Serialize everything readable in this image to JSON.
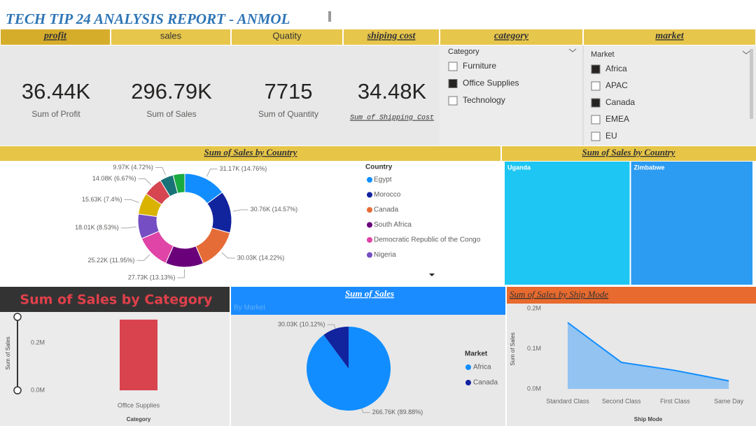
{
  "header": {
    "title": "TECH TIP 24 ANALYSIS REPORT - ANMOL"
  },
  "tabs": [
    "profit",
    "sales",
    "Quatity",
    "shiping cost",
    "category",
    "market"
  ],
  "cards": [
    {
      "value": "36.44K",
      "label": "Sum of Profit"
    },
    {
      "value": "296.79K",
      "label": "Sum of Sales"
    },
    {
      "value": "7715",
      "label": "Sum of Quantity"
    },
    {
      "value": "34.48K",
      "label": "Sum of Shipping Cost"
    }
  ],
  "slicers": [
    {
      "title": "Category",
      "items": [
        {
          "label": "Furniture",
          "checked": false
        },
        {
          "label": "Office Supplies",
          "checked": true
        },
        {
          "label": "Technology",
          "checked": false
        }
      ]
    },
    {
      "title": "Market",
      "items": [
        {
          "label": "Africa",
          "checked": true
        },
        {
          "label": "APAC",
          "checked": false
        },
        {
          "label": "Canada",
          "checked": true
        },
        {
          "label": "EMEA",
          "checked": false
        },
        {
          "label": "EU",
          "checked": false
        }
      ]
    }
  ],
  "chart_data": [
    {
      "type": "donut",
      "title": "Sum of Sales by Country",
      "legend_title": "Country",
      "categories": [
        "Egypt",
        "Morocco",
        "Canada",
        "South Africa",
        "Democratic Republic of the Congo",
        "Nigeria",
        null,
        null,
        null,
        null
      ],
      "values": [
        31170,
        30760,
        30030,
        27730,
        25220,
        18010,
        15630,
        14080,
        9970,
        8550
      ],
      "value_labels": [
        "31.17K (14.76%)",
        "30.76K (14.57%)",
        "30.03K (14.22%)",
        "27.73K (13.13%)",
        "25.22K (11.95%)",
        "18.01K (8.53%)",
        "15.63K (7.4%)",
        "14.08K (6.67%)",
        "9.97K (4.72%)",
        null
      ],
      "colors": [
        "#118DFF",
        "#12239E",
        "#E66C37",
        "#6B007B",
        "#E044A7",
        "#744EC2",
        "#D9B300",
        "#D64550",
        "#197278",
        "#1AAB40"
      ]
    },
    {
      "type": "treemap",
      "title": "Sum of Sales by Country",
      "categories": [
        "Uganda",
        "Zimbabwe"
      ],
      "values": [
        179,
        174
      ],
      "colors": [
        "#1EC6F3",
        "#2C9BF2"
      ]
    },
    {
      "type": "bar",
      "title": "Sum of Sales by Category",
      "categories": [
        "Office Supplies"
      ],
      "values": [
        296790
      ],
      "color": "#D9434E",
      "x_label": "Category",
      "y_label": "Sum of Sales",
      "ylim": [
        0,
        320000
      ],
      "yticks": [
        {
          "value": 0,
          "label": "0.0M"
        },
        {
          "value": 200000,
          "label": "0.2M"
        }
      ]
    },
    {
      "type": "pie",
      "title": "Sum of Sales",
      "subtitle": "By Market",
      "legend_title": "Market",
      "categories": [
        "Africa",
        "Canada"
      ],
      "values": [
        266760,
        30030
      ],
      "value_labels": [
        "266.76K (89.88%)",
        "30.03K (10.12%)"
      ],
      "colors": [
        "#118DFF",
        "#12239E"
      ]
    },
    {
      "type": "area",
      "title": "Sum of Sales by Ship Mode",
      "categories": [
        "Standard Class",
        "Second Class",
        "First Class",
        "Same Day"
      ],
      "values": [
        165000,
        66000,
        46000,
        20000
      ],
      "color": "#118DFF",
      "x_label": "Ship Mode",
      "y_label": "Sum of Sales",
      "ylim": [
        0,
        200000
      ],
      "yticks": [
        {
          "value": 0,
          "label": "0.0M"
        },
        {
          "value": 100000,
          "label": "0.1M"
        },
        {
          "value": 200000,
          "label": "0.2M"
        }
      ]
    }
  ]
}
